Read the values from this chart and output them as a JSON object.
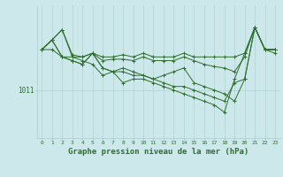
{
  "title": "Graphe pression niveau de la mer (hPa)",
  "bg_color": "#cce8ea",
  "grid_color": "#aacccc",
  "line_color": "#2d6e2d",
  "xlim_min": -0.5,
  "xlim_max": 23.5,
  "ylim_min": 1004.5,
  "ylim_max": 1022.5,
  "ytick_value": 1011,
  "ytick_label": "1011",
  "title_fontsize": 6.5,
  "tick_fontsize": 4.5,
  "ytick_fontsize": 5.5,
  "series": [
    [
      1016.5,
      1017.8,
      1019.2,
      1015.8,
      1015.5,
      1016.0,
      1015.5,
      1015.5,
      1015.8,
      1015.5,
      1016.0,
      1015.5,
      1015.5,
      1015.5,
      1016.0,
      1015.5,
      1015.5,
      1015.5,
      1015.5,
      1015.5,
      1016.0,
      1019.5,
      1016.5,
      1016.5
    ],
    [
      1016.5,
      1016.5,
      1015.5,
      1015.5,
      1015.5,
      1016.0,
      1015.0,
      1015.2,
      1015.2,
      1015.0,
      1015.5,
      1015.0,
      1015.0,
      1015.0,
      1015.5,
      1015.0,
      1014.5,
      1014.2,
      1014.0,
      1013.5,
      1015.5,
      1019.5,
      1016.5,
      1016.0
    ],
    [
      1016.5,
      1017.8,
      1019.2,
      1015.5,
      1015.0,
      1014.5,
      1013.0,
      1013.5,
      1014.0,
      1013.5,
      1013.0,
      1012.5,
      1013.0,
      1013.5,
      1014.0,
      1012.0,
      1011.5,
      1011.0,
      1010.5,
      1009.5,
      1012.5,
      1019.5,
      1016.5,
      1016.5
    ],
    [
      1016.5,
      1017.8,
      1015.5,
      1015.0,
      1014.5,
      1016.0,
      1014.0,
      1013.5,
      1013.5,
      1013.0,
      1013.0,
      1012.5,
      1012.0,
      1011.5,
      1011.5,
      1011.0,
      1010.5,
      1010.0,
      1009.5,
      1012.0,
      1012.5,
      1019.5,
      1016.5,
      1016.5
    ],
    [
      1016.5,
      1017.8,
      1015.5,
      1015.0,
      1014.5,
      1016.0,
      1014.0,
      1013.5,
      1012.0,
      1012.5,
      1012.5,
      1012.0,
      1011.5,
      1011.0,
      1010.5,
      1010.0,
      1009.5,
      1009.0,
      1008.0,
      1012.5,
      1016.0,
      1019.5,
      1016.5,
      1016.5
    ]
  ]
}
